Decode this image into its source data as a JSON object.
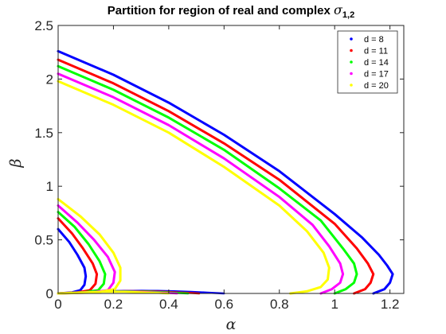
{
  "chart_data": {
    "type": "line",
    "title": "Partition for region of real and complex ",
    "title_symbol": "σ",
    "title_subscript": "1,2",
    "xlabel": "α",
    "ylabel": "β",
    "xlim": [
      0,
      1.25
    ],
    "ylim": [
      0,
      2.5
    ],
    "xticks": [
      "0",
      "0.2",
      "0.4",
      "0.6",
      "0.8",
      "1",
      "1.2"
    ],
    "yticks": [
      "0",
      "0.5",
      "1",
      "1.5",
      "2",
      "2.5"
    ],
    "grid": false,
    "legend_position": "top-right",
    "series": [
      {
        "name": "d = 8",
        "color": "#0000ff",
        "upper": [
          [
            0,
            2.26
          ],
          [
            0.2,
            2.04
          ],
          [
            0.4,
            1.78
          ],
          [
            0.6,
            1.48
          ],
          [
            0.8,
            1.14
          ],
          [
            1.0,
            0.74
          ],
          [
            1.1,
            0.52
          ],
          [
            1.16,
            0.36
          ],
          [
            1.19,
            0.26
          ],
          [
            1.21,
            0.18
          ],
          [
            1.2,
            0.1
          ],
          [
            1.18,
            0.04
          ],
          [
            1.14,
            0.0
          ]
        ],
        "lower": [
          [
            0,
            0.6
          ],
          [
            0.04,
            0.48
          ],
          [
            0.07,
            0.36
          ],
          [
            0.095,
            0.24
          ],
          [
            0.1,
            0.16
          ],
          [
            0.095,
            0.08
          ],
          [
            0.08,
            0.03
          ],
          [
            0.05,
            0.01
          ],
          [
            0.0,
            0.0
          ]
        ],
        "bottom_peak": 0.025,
        "bottom_end": 0.6
      },
      {
        "name": "d = 11",
        "color": "#ff0000",
        "upper": [
          [
            0,
            2.18
          ],
          [
            0.2,
            1.96
          ],
          [
            0.4,
            1.7
          ],
          [
            0.6,
            1.4
          ],
          [
            0.8,
            1.06
          ],
          [
            1.0,
            0.65
          ],
          [
            1.08,
            0.42
          ],
          [
            1.12,
            0.28
          ],
          [
            1.14,
            0.18
          ],
          [
            1.13,
            0.1
          ],
          [
            1.11,
            0.04
          ],
          [
            1.07,
            0.0
          ]
        ],
        "lower": [
          [
            0,
            0.7
          ],
          [
            0.05,
            0.56
          ],
          [
            0.09,
            0.42
          ],
          [
            0.125,
            0.28
          ],
          [
            0.14,
            0.18
          ],
          [
            0.135,
            0.09
          ],
          [
            0.115,
            0.03
          ],
          [
            0.07,
            0.01
          ],
          [
            0.0,
            0.0
          ]
        ],
        "bottom_peak": 0.022,
        "bottom_end": 0.51
      },
      {
        "name": "d = 14",
        "color": "#00ff00",
        "upper": [
          [
            0,
            2.12
          ],
          [
            0.2,
            1.9
          ],
          [
            0.4,
            1.64
          ],
          [
            0.6,
            1.34
          ],
          [
            0.8,
            0.98
          ],
          [
            0.95,
            0.68
          ],
          [
            1.03,
            0.42
          ],
          [
            1.07,
            0.28
          ],
          [
            1.08,
            0.18
          ],
          [
            1.07,
            0.1
          ],
          [
            1.04,
            0.04
          ],
          [
            1.0,
            0.0
          ]
        ],
        "lower": [
          [
            0,
            0.76
          ],
          [
            0.06,
            0.62
          ],
          [
            0.11,
            0.46
          ],
          [
            0.15,
            0.3
          ],
          [
            0.17,
            0.18
          ],
          [
            0.165,
            0.09
          ],
          [
            0.145,
            0.03
          ],
          [
            0.09,
            0.01
          ],
          [
            0.0,
            0.0
          ]
        ],
        "bottom_peak": 0.02,
        "bottom_end": 0.47
      },
      {
        "name": "d = 17",
        "color": "#ff00ff",
        "upper": [
          [
            0,
            2.05
          ],
          [
            0.2,
            1.83
          ],
          [
            0.4,
            1.57
          ],
          [
            0.6,
            1.26
          ],
          [
            0.8,
            0.9
          ],
          [
            0.92,
            0.64
          ],
          [
            0.98,
            0.44
          ],
          [
            1.02,
            0.28
          ],
          [
            1.03,
            0.18
          ],
          [
            1.02,
            0.1
          ],
          [
            0.99,
            0.04
          ],
          [
            0.95,
            0.0
          ]
        ],
        "lower": [
          [
            0,
            0.82
          ],
          [
            0.07,
            0.66
          ],
          [
            0.13,
            0.5
          ],
          [
            0.18,
            0.34
          ],
          [
            0.205,
            0.2
          ],
          [
            0.2,
            0.1
          ],
          [
            0.18,
            0.03
          ],
          [
            0.12,
            0.01
          ],
          [
            0.0,
            0.0
          ]
        ],
        "bottom_peak": 0.018,
        "bottom_end": 0.43
      },
      {
        "name": "d = 20",
        "color": "#ffff00",
        "upper": [
          [
            0,
            1.98
          ],
          [
            0.2,
            1.76
          ],
          [
            0.4,
            1.5
          ],
          [
            0.6,
            1.18
          ],
          [
            0.8,
            0.82
          ],
          [
            0.9,
            0.58
          ],
          [
            0.96,
            0.38
          ],
          [
            0.98,
            0.24
          ],
          [
            0.975,
            0.13
          ],
          [
            0.95,
            0.06
          ],
          [
            0.9,
            0.02
          ],
          [
            0.84,
            0.0
          ]
        ],
        "lower": [
          [
            0,
            0.88
          ],
          [
            0.08,
            0.72
          ],
          [
            0.15,
            0.55
          ],
          [
            0.2,
            0.38
          ],
          [
            0.225,
            0.24
          ],
          [
            0.225,
            0.12
          ],
          [
            0.205,
            0.04
          ],
          [
            0.14,
            0.01
          ],
          [
            0.0,
            0.0
          ]
        ],
        "bottom_peak": 0.016,
        "bottom_end": 0.4
      }
    ]
  }
}
